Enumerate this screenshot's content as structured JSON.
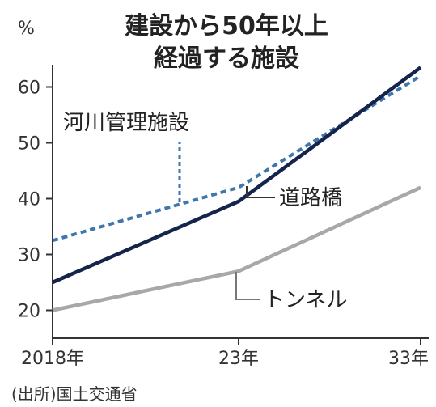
{
  "chart_data": {
    "type": "line",
    "title_lines": [
      "建設から50年以上",
      "経過する施設"
    ],
    "unit": "%",
    "x_labels": [
      "2018年",
      "23年",
      "33年"
    ],
    "x_values": [
      2018,
      2023,
      2033
    ],
    "ylim": [
      15,
      65
    ],
    "y_ticks": [
      20,
      30,
      40,
      50,
      60
    ],
    "series": [
      {
        "name": "河川管理施設",
        "values": [
          32.5,
          42,
          62
        ],
        "color": "#3f76ad",
        "dashed": true
      },
      {
        "name": "道路橋",
        "values": [
          25,
          39.5,
          63.5
        ],
        "color": "#14244a",
        "dashed": false
      },
      {
        "name": "トンネル",
        "values": [
          20,
          27,
          42
        ],
        "color": "#a8a8a8",
        "dashed": false
      }
    ],
    "source": "(出所)国土交通省"
  }
}
